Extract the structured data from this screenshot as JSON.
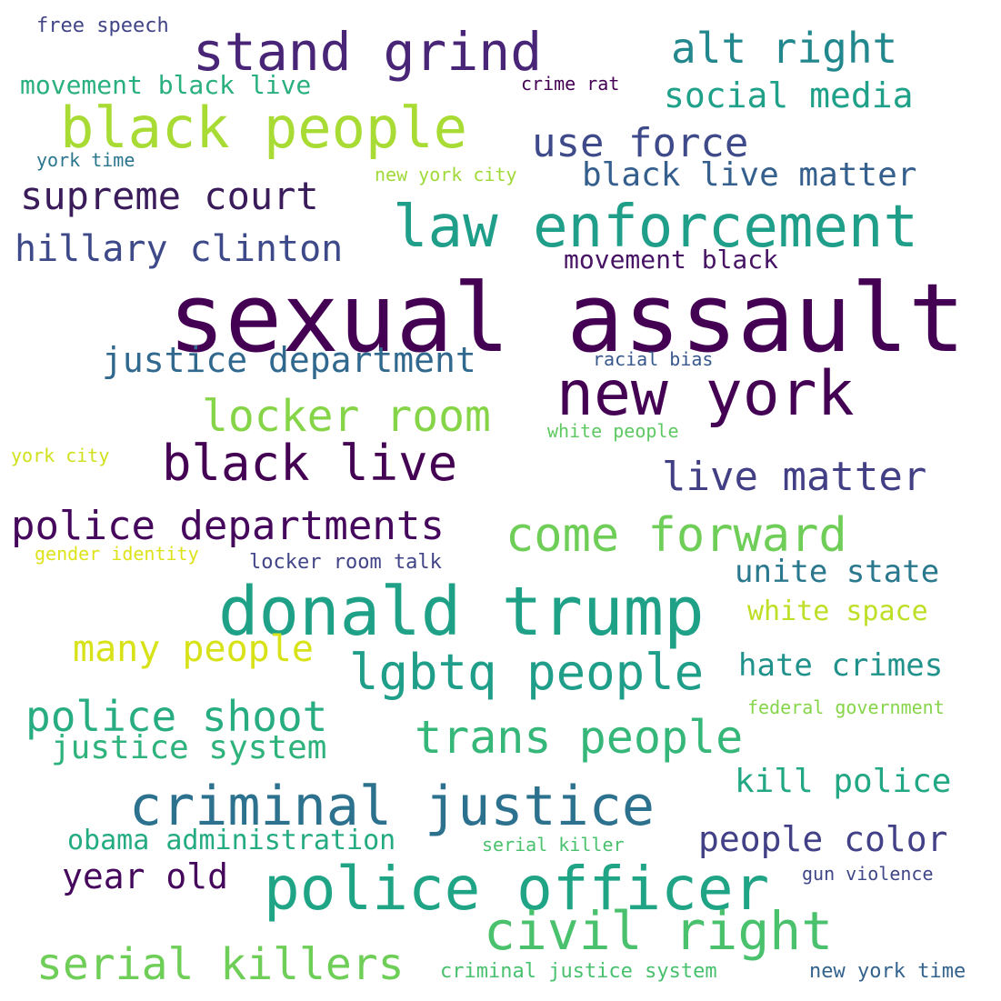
{
  "words": [
    {
      "text": "sexual assault",
      "color": "#440154"
    },
    {
      "text": "donald trump",
      "color": "#1fa187"
    },
    {
      "text": "law enforcement",
      "color": "#1f9e89"
    },
    {
      "text": "new york",
      "color": "#440154"
    },
    {
      "text": "police officer",
      "color": "#20a486"
    },
    {
      "text": "criminal justice",
      "color": "#2c718e"
    },
    {
      "text": "black people",
      "color": "#a8db34"
    },
    {
      "text": "stand grind",
      "color": "#482576"
    },
    {
      "text": "civil right",
      "color": "#4ac16d"
    },
    {
      "text": "lgbtq people",
      "color": "#1f9e89"
    },
    {
      "text": "black live",
      "color": "#440154"
    },
    {
      "text": "serial killers",
      "color": "#6ece58"
    },
    {
      "text": "come forward",
      "color": "#6ece58"
    },
    {
      "text": "police departments",
      "color": "#46085c"
    },
    {
      "text": "trans people",
      "color": "#35b779"
    },
    {
      "text": "police shoot",
      "color": "#27ad81"
    },
    {
      "text": "locker room",
      "color": "#86d549"
    },
    {
      "text": "supreme court",
      "color": "#3b1c5b"
    },
    {
      "text": "use force",
      "color": "#3e4a89"
    },
    {
      "text": "alt right",
      "color": "#23888e"
    },
    {
      "text": "live matter",
      "color": "#423f85"
    },
    {
      "text": "justice department",
      "color": "#31688e"
    },
    {
      "text": "hillary clinton",
      "color": "#3e4989"
    },
    {
      "text": "many people",
      "color": "#d8e219"
    },
    {
      "text": "year old",
      "color": "#46085c"
    },
    {
      "text": "social media",
      "color": "#1fa088"
    },
    {
      "text": "black live matter",
      "color": "#355f8d"
    },
    {
      "text": "justice system",
      "color": "#2eb37c"
    },
    {
      "text": "people color",
      "color": "#424086"
    },
    {
      "text": "kill police",
      "color": "#22a884"
    },
    {
      "text": "hate crimes",
      "color": "#21918c"
    },
    {
      "text": "unite state",
      "color": "#2a788e"
    },
    {
      "text": "white space",
      "color": "#bddf26"
    },
    {
      "text": "obama administration",
      "color": "#25ab82"
    },
    {
      "text": "movement black live",
      "color": "#2ab07f"
    },
    {
      "text": "movement black",
      "color": "#471365"
    },
    {
      "text": "locker room talk",
      "color": "#414487"
    },
    {
      "text": "free speech",
      "color": "#414487"
    },
    {
      "text": "crime rat",
      "color": "#440154"
    },
    {
      "text": "york time",
      "color": "#2a768e"
    },
    {
      "text": "new york city",
      "color": "#a0da39"
    },
    {
      "text": "racial bias",
      "color": "#38588c"
    },
    {
      "text": "white people",
      "color": "#5ec962"
    },
    {
      "text": "york city",
      "color": "#d0e11c"
    },
    {
      "text": "gender identity",
      "color": "#dde318"
    },
    {
      "text": "federal government",
      "color": "#86d549"
    },
    {
      "text": "serial killer",
      "color": "#4ac16d"
    },
    {
      "text": "gun violence",
      "color": "#3f4788"
    },
    {
      "text": "criminal justice system",
      "color": "#48c16e"
    },
    {
      "text": "new york time",
      "color": "#33638d"
    }
  ]
}
